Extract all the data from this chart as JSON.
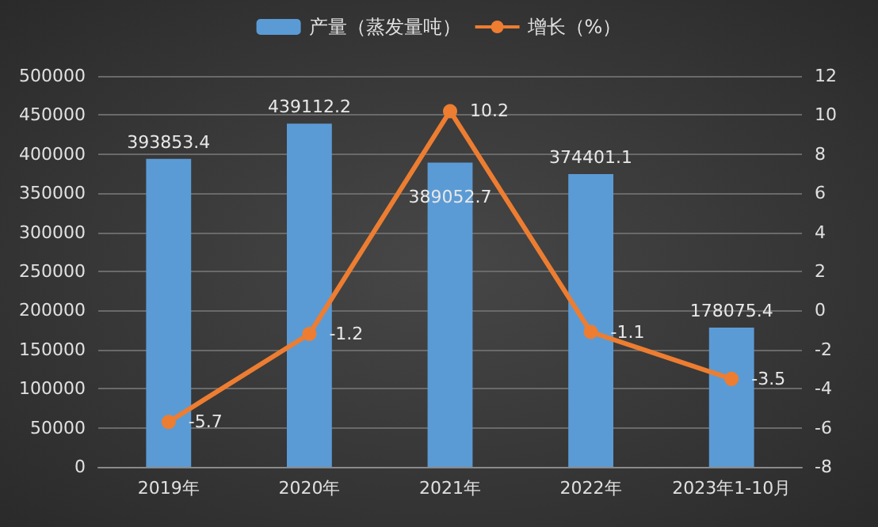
{
  "chart_data": {
    "type": "bar",
    "categories": [
      "2019年",
      "2020年",
      "2021年",
      "2022年",
      "2023年1-10月"
    ],
    "series": [
      {
        "name": "产量（蒸发量吨）",
        "color": "#5b9bd5",
        "values": [
          393853.4,
          439112.2,
          389052.7,
          374401.1,
          178075.4
        ]
      },
      {
        "name": "增长（%）",
        "type": "line",
        "axis": "y2",
        "color": "#ed7d31",
        "values": [
          -5.7,
          -1.2,
          10.2,
          -1.1,
          -3.5
        ]
      }
    ],
    "ylim": [
      0,
      500000
    ],
    "yticks": [
      0,
      50000,
      100000,
      150000,
      200000,
      250000,
      300000,
      350000,
      400000,
      450000,
      500000
    ],
    "y2lim": [
      -8,
      12
    ],
    "y2ticks": [
      -8,
      -6,
      -4,
      -2,
      0,
      2,
      4,
      6,
      8,
      10,
      12
    ],
    "data_labels": true,
    "grid": "y",
    "legend": "top",
    "marker": "circle"
  }
}
